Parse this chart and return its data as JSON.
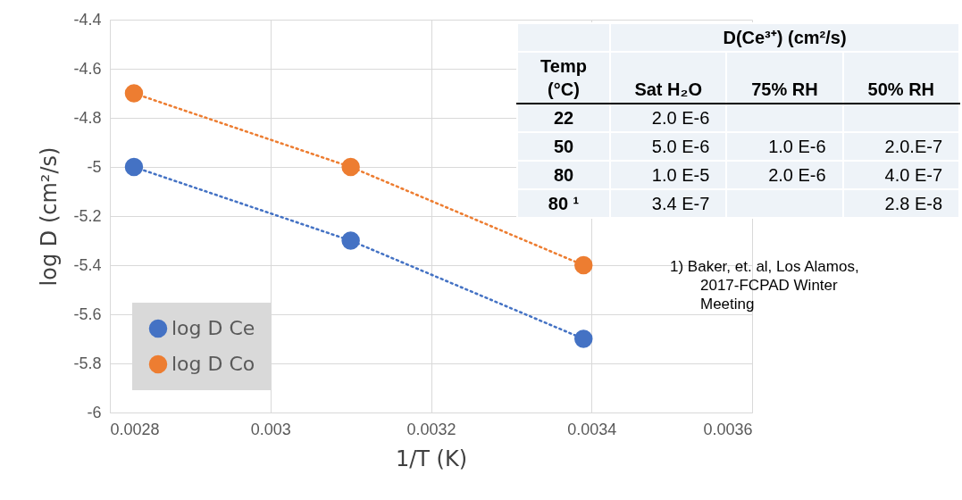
{
  "chart_data": [
    {
      "type": "scatter",
      "xlabel": "1/T (K)",
      "ylabel": "log D (cm²/s)",
      "x": [
        0.00283,
        0.0031,
        0.00339
      ],
      "series": [
        {
          "name": "log D Ce",
          "type": "scatter",
          "color": "#4472c4",
          "values": [
            -5,
            -5.3,
            -5.7
          ]
        },
        {
          "name": "log D Co",
          "type": "scatter",
          "color": "#ed7d31",
          "values": [
            -4.7,
            -5,
            -5.4
          ]
        },
        {
          "type": "line",
          "color": "#4472c4",
          "line_style": "dotted",
          "marker": "none",
          "values": [
            -5,
            -5.3,
            -5.7
          ]
        },
        {
          "type": "line",
          "color": "#ed7d31",
          "line_style": "dotted",
          "marker": "none",
          "values": [
            -4.7,
            -5,
            -5.4
          ]
        }
      ],
      "xlim": [
        0.0028,
        0.0036
      ],
      "xticks": [
        0.0028,
        0.003,
        0.0032,
        0.0034,
        0.0036
      ],
      "ylim": [
        -6,
        -4.4
      ],
      "yticks": [
        -6,
        -5.8,
        -5.6,
        -5.4,
        -5.2,
        -5,
        -4.8,
        -4.6,
        -4.4
      ],
      "grid": true,
      "legend": "bottom left",
      "marker": "circle"
    },
    {
      "type": "other",
      "title": "D(Ce³⁺) (cm²/s)",
      "categories": [
        "Temp (°C)",
        "Sat H₂O",
        "75% RH",
        "50% RH"
      ],
      "y_categories": [
        "22",
        "50",
        "80",
        "80 ¹"
      ],
      "cell_labels": [
        [
          "2.0 E-6",
          null,
          null
        ],
        [
          "5.0 E-6",
          "1.0 E-6",
          "2.0.E-7"
        ],
        [
          "1.0 E-5",
          "2.0 E-6",
          "4.0 E-7"
        ],
        [
          "3.4 E-7",
          null,
          "2.8 E-8"
        ]
      ],
      "annotations": [
        "1)  Baker, et. al, Los Alamos, 2017-FCPAD Winter Meeting"
      ]
    }
  ]
}
